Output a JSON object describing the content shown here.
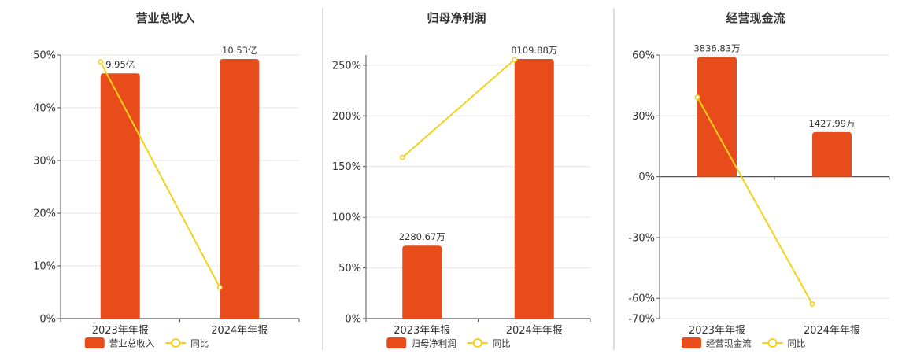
{
  "colors": {
    "bar": "#e84c1b",
    "line": "#f2d21b",
    "grid": "#e6e6e6",
    "axis": "#555555",
    "divider": "#bbbbbb"
  },
  "chart_data": [
    {
      "type": "bar",
      "title": "营业总收入",
      "categories": [
        "2023年年报",
        "2024年年报"
      ],
      "bar_values": [
        9.95,
        10.53
      ],
      "bar_labels": [
        "9.95亿",
        "10.53亿"
      ],
      "bar_unit": "亿",
      "yoy_values": [
        48.7,
        5.9
      ],
      "ylim": [
        0,
        50
      ],
      "yticks": [
        0,
        10,
        20,
        30,
        40,
        50
      ],
      "ytick_labels": [
        "0%",
        "10%",
        "20%",
        "30%",
        "40%",
        "50%"
      ],
      "legend": [
        "营业总收入",
        "同比"
      ],
      "legend_position": "bottom",
      "grid": true
    },
    {
      "type": "bar",
      "title": "归母净利润",
      "categories": [
        "2023年年报",
        "2024年年报"
      ],
      "bar_values": [
        2280.67,
        8109.88
      ],
      "bar_labels": [
        "2280.67万",
        "8109.88万"
      ],
      "bar_unit": "万",
      "yoy_values": [
        159,
        255.6
      ],
      "ylim": [
        0,
        260
      ],
      "yticks": [
        0,
        50,
        100,
        150,
        200,
        250
      ],
      "ytick_labels": [
        "0%",
        "50%",
        "100%",
        "150%",
        "200%",
        "250%"
      ],
      "legend": [
        "归母净利润",
        "同比"
      ],
      "legend_position": "bottom",
      "grid": true
    },
    {
      "type": "bar",
      "title": "经营现金流",
      "categories": [
        "2023年年报",
        "2024年年报"
      ],
      "bar_values": [
        3836.83,
        1427.99
      ],
      "bar_labels": [
        "3836.83万",
        "1427.99万"
      ],
      "bar_unit": "万",
      "yoy_values": [
        39.2,
        -62.8
      ],
      "ylim": [
        -70,
        60
      ],
      "yticks": [
        -70,
        -60,
        -30,
        0,
        30,
        60
      ],
      "ytick_labels": [
        "-70%",
        "-60%",
        "-30%",
        "0%",
        "30%",
        "60%"
      ],
      "legend": [
        "经营现金流",
        "同比"
      ],
      "legend_position": "bottom",
      "grid": true
    }
  ]
}
